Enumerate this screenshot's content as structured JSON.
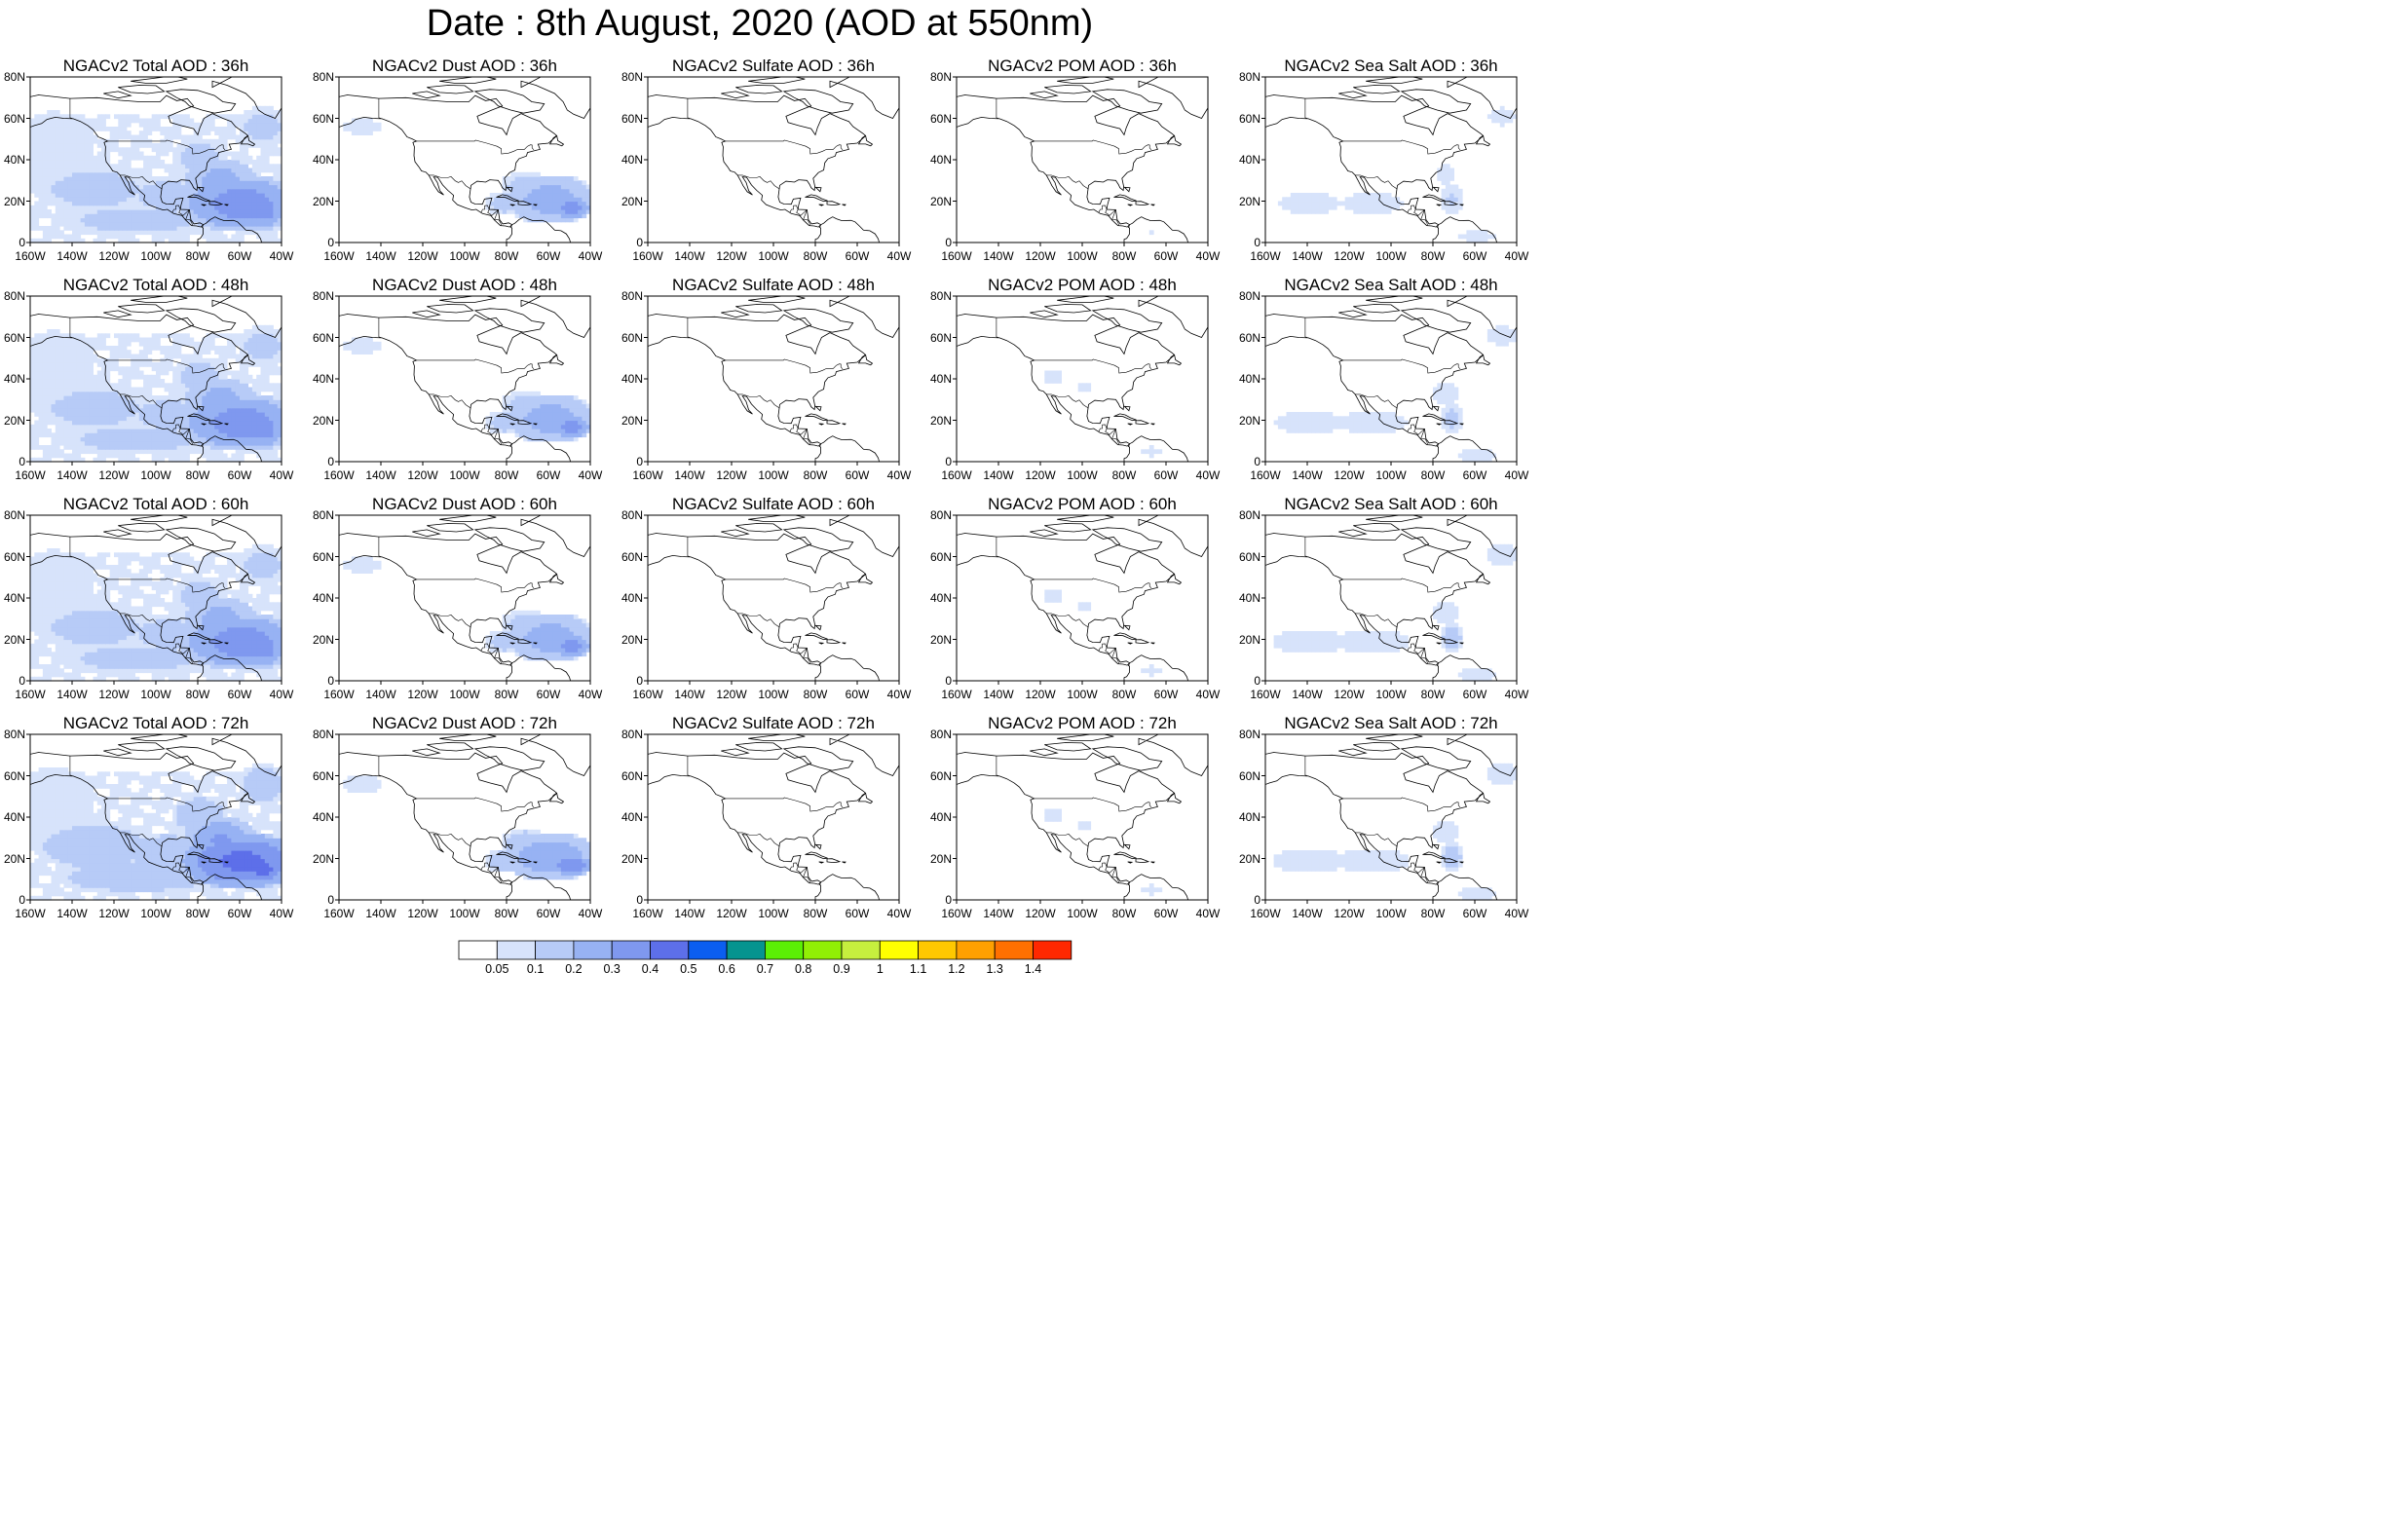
{
  "figure": {
    "title": "Date : 8th August, 2020 (AOD at 550nm)"
  },
  "axes": {
    "lon_labels": [
      "160W",
      "140W",
      "120W",
      "100W",
      "80W",
      "60W",
      "40W"
    ],
    "lat_labels": [
      "80N",
      "60N",
      "40N",
      "20N",
      "0"
    ],
    "lon_range": [
      -160,
      -40
    ],
    "lat_range": [
      0,
      80
    ]
  },
  "rows": [
    {
      "hour": "36h",
      "panels": [
        {
          "title": "NGACv2 Total AOD : 36h",
          "field": "total",
          "intensity": 1.0
        },
        {
          "title": "NGACv2 Dust AOD : 36h",
          "field": "dust",
          "intensity": 1.0
        },
        {
          "title": "NGACv2 Sulfate AOD : 36h",
          "field": "sulfate",
          "intensity": 0.0
        },
        {
          "title": "NGACv2 POM AOD : 36h",
          "field": "pom",
          "intensity": 0.5
        },
        {
          "title": "NGACv2 Sea Salt AOD : 36h",
          "field": "seasalt",
          "intensity": 0.8
        }
      ]
    },
    {
      "hour": "48h",
      "panels": [
        {
          "title": "NGACv2 Total AOD : 48h",
          "field": "total",
          "intensity": 1.0
        },
        {
          "title": "NGACv2 Dust AOD : 48h",
          "field": "dust",
          "intensity": 1.0
        },
        {
          "title": "NGACv2 Sulfate AOD : 48h",
          "field": "sulfate",
          "intensity": 0.0
        },
        {
          "title": "NGACv2 POM AOD : 48h",
          "field": "pom",
          "intensity": 0.6
        },
        {
          "title": "NGACv2 Sea Salt AOD : 48h",
          "field": "seasalt",
          "intensity": 0.9
        }
      ]
    },
    {
      "hour": "60h",
      "panels": [
        {
          "title": "NGACv2 Total AOD : 60h",
          "field": "total",
          "intensity": 1.0
        },
        {
          "title": "NGACv2 Dust AOD : 60h",
          "field": "dust",
          "intensity": 1.0
        },
        {
          "title": "NGACv2 Sulfate AOD : 60h",
          "field": "sulfate",
          "intensity": 0.0
        },
        {
          "title": "NGACv2 POM AOD : 60h",
          "field": "pom",
          "intensity": 0.6
        },
        {
          "title": "NGACv2 Sea Salt AOD : 60h",
          "field": "seasalt",
          "intensity": 1.0
        }
      ]
    },
    {
      "hour": "72h",
      "panels": [
        {
          "title": "NGACv2 Total AOD : 72h",
          "field": "total",
          "intensity": 1.2
        },
        {
          "title": "NGACv2 Dust AOD : 72h",
          "field": "dust",
          "intensity": 1.1
        },
        {
          "title": "NGACv2 Sulfate AOD : 72h",
          "field": "sulfate",
          "intensity": 0.1
        },
        {
          "title": "NGACv2 POM AOD : 72h",
          "field": "pom",
          "intensity": 0.6
        },
        {
          "title": "NGACv2 Sea Salt  AOD : 72h",
          "field": "seasalt",
          "intensity": 1.0
        }
      ]
    }
  ],
  "colorbar": {
    "labels": [
      "0.05",
      "0.1",
      "0.2",
      "0.3",
      "0.4",
      "0.5",
      "0.6",
      "0.7",
      "0.8",
      "0.9",
      "1",
      "1.1",
      "1.2",
      "1.3",
      "1.4"
    ],
    "colors": [
      "#ffffff",
      "#d7e3fb",
      "#b7cbf7",
      "#97b2f3",
      "#7f98ef",
      "#5d6fe9",
      "#0b5ef0",
      "#06948f",
      "#5bef05",
      "#91ef05",
      "#c6ef3e",
      "#ffff00",
      "#ffc800",
      "#ffa000",
      "#ff7000",
      "#ff2800"
    ]
  }
}
